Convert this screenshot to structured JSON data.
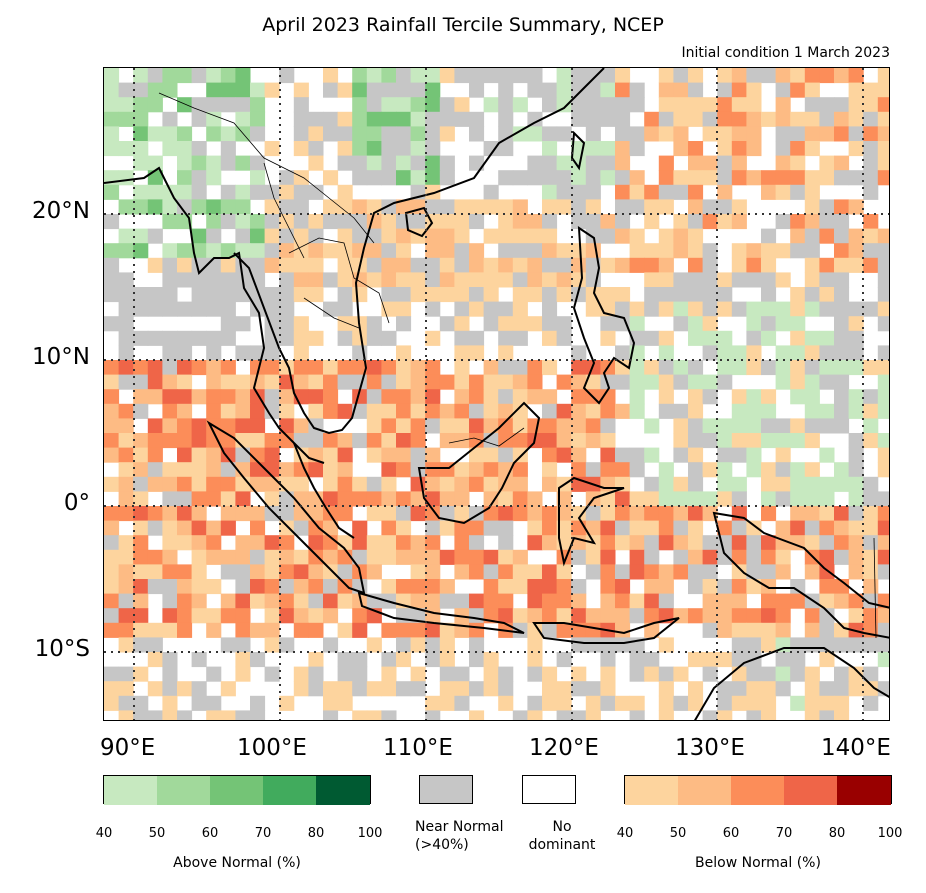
{
  "title": "April 2023 Rainfall Tercile Summary, NCEP",
  "subtitle": "Initial condition 1 March 2023",
  "lat_labels": [
    "20°N",
    "10°N",
    "0°",
    "10°S"
  ],
  "lon_labels": [
    "90°E",
    "100°E",
    "110°E",
    "120°E",
    "130°E",
    "140°E"
  ],
  "legend": {
    "above": {
      "label": "Above Normal (%)",
      "ticks": [
        "40",
        "50",
        "60",
        "70",
        "80",
        "100"
      ],
      "colors": [
        "#c7e9c0",
        "#a1d99b",
        "#74c476",
        "#41ab5d",
        "#005a32"
      ]
    },
    "near": {
      "label": "Near Normal\n(>40%)",
      "color": "#c6c6c6"
    },
    "none": {
      "label": "No\ndominant",
      "color": "#ffffff"
    },
    "below": {
      "label": "Below Normal (%)",
      "ticks": [
        "40",
        "50",
        "60",
        "70",
        "80",
        "100"
      ],
      "colors": [
        "#fdd49e",
        "#fdbb84",
        "#fc8d59",
        "#ef6548",
        "#990000"
      ]
    }
  }
}
